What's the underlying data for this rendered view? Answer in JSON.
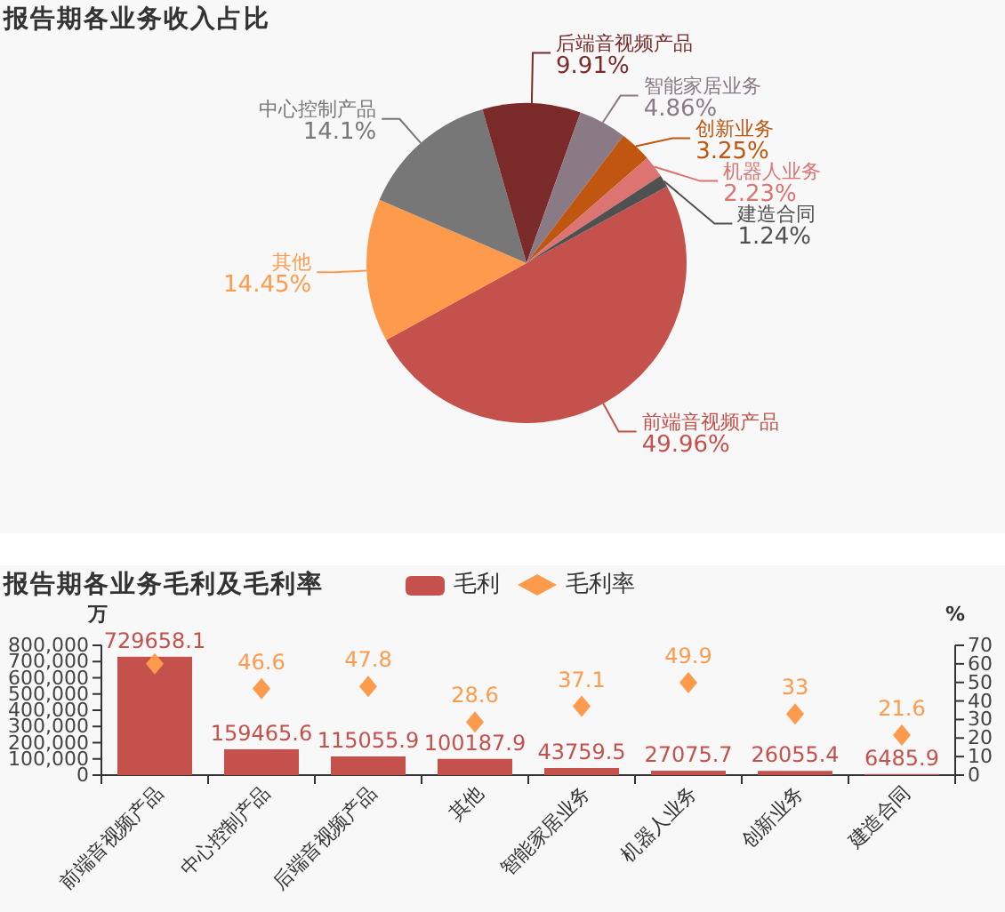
{
  "chart_data": [
    {
      "type": "pie",
      "title": "报告期各业务收入占比",
      "categories": [
        "前端音视频产品",
        "其他",
        "中心控制产品",
        "后端音视频产品",
        "智能家居业务",
        "创新业务",
        "机器人业务",
        "建造合同"
      ],
      "values": [
        49.96,
        14.45,
        14.1,
        9.91,
        4.86,
        3.25,
        2.23,
        1.24
      ],
      "colors": [
        "#c5514c",
        "#fe9a4c",
        "#777777",
        "#7a2b29",
        "#8a7a86",
        "#c0560f",
        "#dc7471",
        "#505050"
      ],
      "value_labels": [
        "49.96%",
        "14.45%",
        "14.1%",
        "9.91%",
        "4.86%",
        "3.25%",
        "2.23%",
        "1.24%"
      ]
    },
    {
      "type": "bar",
      "title": "报告期各业务毛利及毛利率",
      "categories": [
        "前端音视频产品",
        "中心控制产品",
        "后端音视频产品",
        "其他",
        "智能家居业务",
        "机器人业务",
        "创新业务",
        "建造合同"
      ],
      "series": [
        {
          "name": "毛利",
          "type": "bar",
          "color": "#c5514c",
          "values": [
            729658.1,
            159465.6,
            115055.9,
            100187.9,
            43759.5,
            27075.7,
            26055.4,
            6485.9
          ],
          "value_labels": [
            "729658.1",
            "159465.6",
            "115055.9",
            "100187.9",
            "43759.5",
            "27075.7",
            "26055.4",
            "6485.9"
          ]
        },
        {
          "name": "毛利率",
          "type": "scatter",
          "axis": "y2",
          "marker": "diamond",
          "color": "#fe9a4c",
          "values": [
            60,
            46.6,
            47.8,
            28.6,
            37.1,
            49.9,
            33,
            21.6
          ],
          "value_labels": [
            null,
            "46.6",
            "47.8",
            "28.6",
            "37.1",
            "49.9",
            "33",
            "21.6"
          ]
        }
      ],
      "ylabel": "万",
      "y2label": "%",
      "ylim": [
        0,
        800000
      ],
      "yticks": [
        0,
        {
          "value": 100000,
          "label": "100,000"
        },
        {
          "value": 200000,
          "label": "200,000"
        },
        {
          "value": 300000,
          "label": "300,000"
        },
        {
          "value": 400000,
          "label": "400,000"
        },
        {
          "value": 500000,
          "label": "500,000"
        },
        {
          "value": 600000,
          "label": "600,000"
        },
        {
          "value": 700000,
          "label": "700,000"
        },
        {
          "value": 800000,
          "label": "800,000"
        }
      ],
      "y2lim": [
        0,
        70
      ],
      "y2ticks": [
        0,
        10,
        20,
        30,
        40,
        50,
        60,
        70
      ],
      "legend": "top"
    }
  ]
}
